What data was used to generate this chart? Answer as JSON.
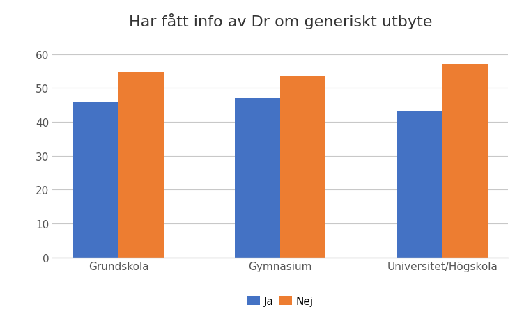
{
  "title": "Har fått info av Dr om generiskt utbyte",
  "categories": [
    "Grundskola",
    "Gymnasium",
    "Universitet/Högskola"
  ],
  "series": {
    "Ja": [
      46,
      47,
      43
    ],
    "Nej": [
      54.5,
      53.5,
      57
    ]
  },
  "bar_colors": {
    "Ja": "#4472C4",
    "Nej": "#ED7D31"
  },
  "ylim": [
    0,
    65
  ],
  "yticks": [
    0,
    10,
    20,
    30,
    40,
    50,
    60
  ],
  "bar_width": 0.28,
  "legend_labels": [
    "Ja",
    "Nej"
  ],
  "title_fontsize": 16,
  "tick_fontsize": 11,
  "legend_fontsize": 11,
  "background_color": "#ffffff",
  "grid_color": "#c8c8c8",
  "axis_color": "#c8c8c8"
}
